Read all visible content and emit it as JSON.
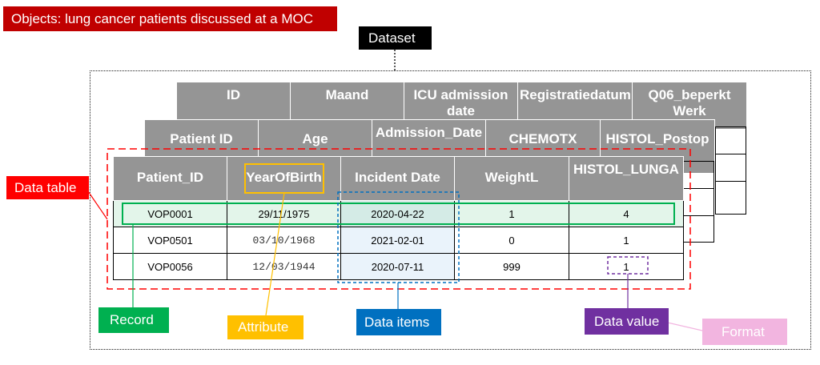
{
  "title_tag": "Objects: lung cancer patients discussed at a MOC",
  "dataset_tag": "Dataset",
  "back_table_1": {
    "headers": [
      "ID",
      "Maand",
      "ICU admission date",
      "Registratiedatum",
      "Q06_beperkt Werk"
    ]
  },
  "back_table_2": {
    "headers": [
      "Patient ID",
      "Age",
      "Admission_Date",
      "CHEMOTX",
      "HISTOL_Postop"
    ]
  },
  "front_table": {
    "headers": [
      "Patient_ID",
      "YearOfBirth",
      "Incident Date",
      "WeightL",
      "HISTOL_LUNGA"
    ],
    "rows": [
      [
        "VOP0001",
        "29/11/1975",
        "2020-04-22",
        "1",
        "4"
      ],
      [
        "VOP0501",
        "03/10/1968",
        "2021-02-01",
        "0",
        "1"
      ],
      [
        "VOP0056",
        "12/03/1944",
        "2020-07-11",
        "999",
        "1"
      ]
    ]
  },
  "labels": {
    "data_table": "Data table",
    "record": "Record",
    "attribute": "Attribute",
    "data_items": "Data items",
    "data_value": "Data value",
    "format": "Format"
  },
  "colors": {
    "title_red": "#c00000",
    "data_table_red": "#ff0000",
    "record_green": "#00b050",
    "attribute_orange": "#ffc000",
    "data_items_blue": "#0070c0",
    "data_value_purple": "#7030a0",
    "format_pink": "#f2b5e0",
    "header_gray": "#959595"
  }
}
